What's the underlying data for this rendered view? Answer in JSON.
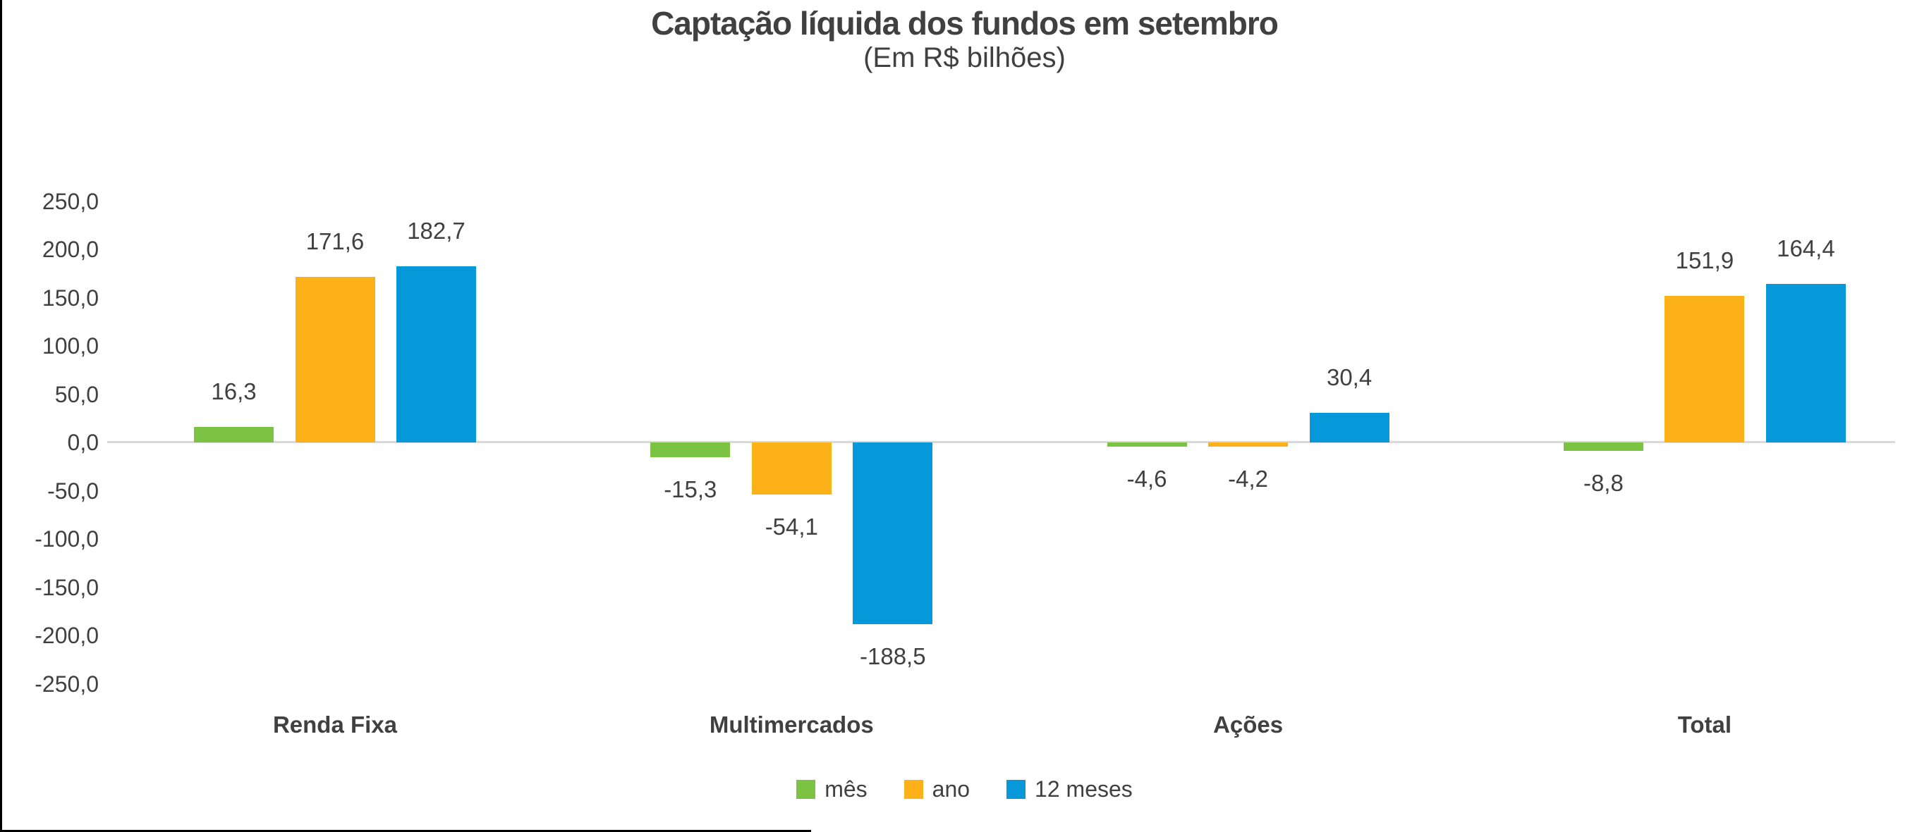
{
  "title": "Captação líquida dos fundos em setembro",
  "subtitle": "(Em R$ bilhões)",
  "chart_data": {
    "type": "bar",
    "title": "Captação líquida dos fundos em setembro",
    "subtitle": "(Em R$ bilhões)",
    "categories": [
      "Renda Fixa",
      "Multimercados",
      "Ações",
      "Total"
    ],
    "series": [
      {
        "name": "mês",
        "color": "#7DC343",
        "values": [
          16.3,
          -15.3,
          -4.6,
          -8.8
        ],
        "labels": [
          "16,3",
          "-15,3",
          "-4,6",
          "-8,8"
        ]
      },
      {
        "name": "ano",
        "color": "#FBB117",
        "values": [
          171.6,
          -54.1,
          -4.2,
          151.9
        ],
        "labels": [
          "171,6",
          "-54,1",
          "-4,2",
          "151,9"
        ]
      },
      {
        "name": "12 meses",
        "color": "#0698D9",
        "values": [
          182.7,
          -188.5,
          30.4,
          164.4
        ],
        "labels": [
          "182,7",
          "-188,5",
          "30,4",
          "164,4"
        ]
      }
    ],
    "y_axis": {
      "min": -250,
      "max": 250,
      "step": 50,
      "tick_labels": [
        "250,0",
        "200,0",
        "150,0",
        "100,0",
        "50,0",
        "0,0",
        "-50,0",
        "-100,0",
        "-150,0",
        "-200,0",
        "-250,0"
      ]
    },
    "legend": {
      "position": "bottom",
      "items": [
        "mês",
        "ano",
        "12 meses"
      ]
    },
    "grid": false,
    "axis_line_color": "#D9D9D9",
    "text_color": "#404040",
    "frame_border_color": "#000000"
  }
}
